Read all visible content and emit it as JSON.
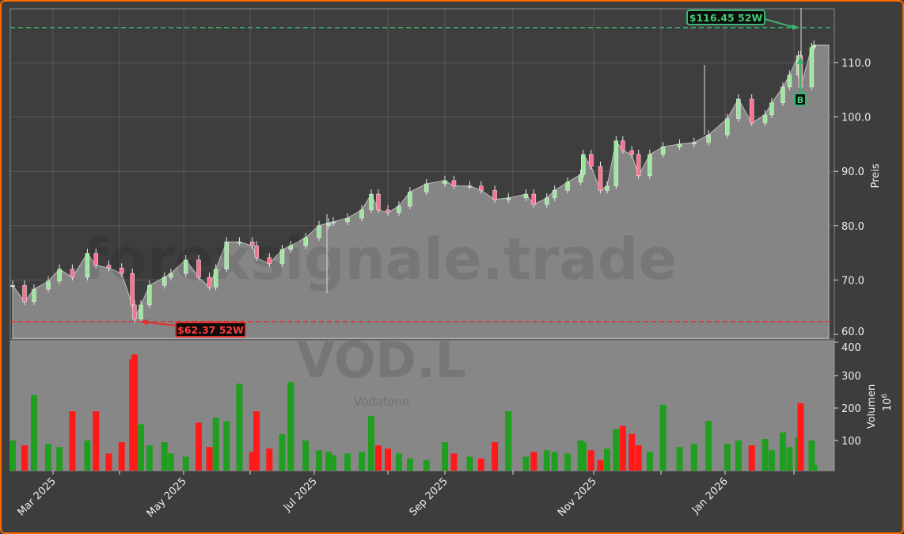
{
  "chart_data": {
    "type": "candlestick+volume",
    "ticker": "VOD.L",
    "company": "Vodafone",
    "watermark": "forexsignale.trade",
    "price_panel": {
      "ylabel": "Preis",
      "ylim": [
        59,
        120
      ],
      "yticks": [
        "60.0",
        "70.0",
        "80.0",
        "90.0",
        "100.0",
        "110.0"
      ]
    },
    "volume_panel": {
      "ylabel": "Volumen",
      "unit": "10^6",
      "ylim": [
        0,
        400
      ],
      "yticks": [
        "100",
        "200",
        "300",
        "400"
      ]
    },
    "xticks": [
      "Mar 2025",
      "May 2025",
      "Jul 2025",
      "Sep 2025",
      "Nov 2025",
      "Jan 2026"
    ],
    "grid": true,
    "colors": {
      "up": "#1f9e1f",
      "down": "#ff1a1a",
      "candle_up": "#9ee89e",
      "candle_down": "#ff6f8f",
      "area": "#858585",
      "high_line": "#3cb371",
      "low_line": "#e03030"
    },
    "annotations": {
      "high_52w": {
        "value": 116.45,
        "label": "$116.45 52W"
      },
      "low_52w": {
        "value": 62.37,
        "label": "$62.37 52W"
      },
      "signal": {
        "label": "B",
        "date": "2026-02-04"
      }
    },
    "series": [
      [
        "2025-02-12",
        69.0,
        100
      ],
      [
        "2025-02-17",
        66.0,
        85
      ],
      [
        "2025-02-21",
        68.3,
        240
      ],
      [
        "2025-02-27",
        69.8,
        90
      ],
      [
        "2025-03-04",
        72.0,
        80
      ],
      [
        "2025-03-10",
        70.5,
        190
      ],
      [
        "2025-03-17",
        74.9,
        100
      ],
      [
        "2025-03-21",
        72.7,
        190
      ],
      [
        "2025-03-27",
        72.2,
        60
      ],
      [
        "2025-04-02",
        71.2,
        95
      ],
      [
        "2025-04-07",
        65.4,
        350
      ],
      [
        "2025-04-08",
        62.8,
        365
      ],
      [
        "2025-04-11",
        65.4,
        150
      ],
      [
        "2025-04-15",
        69.0,
        85
      ],
      [
        "2025-04-22",
        70.5,
        95
      ],
      [
        "2025-04-25",
        71.2,
        60
      ],
      [
        "2025-05-02",
        73.7,
        50
      ],
      [
        "2025-05-08",
        70.5,
        155
      ],
      [
        "2025-05-13",
        68.7,
        80
      ],
      [
        "2025-05-16",
        72.0,
        170
      ],
      [
        "2025-05-21",
        77.0,
        160
      ],
      [
        "2025-05-27",
        77.0,
        275
      ],
      [
        "2025-06-02",
        76.3,
        65
      ],
      [
        "2025-06-04",
        74.1,
        190
      ],
      [
        "2025-06-10",
        73.0,
        75
      ],
      [
        "2025-06-16",
        75.6,
        120
      ],
      [
        "2025-06-20",
        76.3,
        280
      ],
      [
        "2025-06-27",
        77.8,
        100
      ],
      [
        "2025-07-03",
        80.0,
        70
      ],
      [
        "2025-07-07",
        80.5,
        65
      ],
      [
        "2025-07-09",
        80.7,
        55
      ],
      [
        "2025-07-15",
        81.4,
        60
      ],
      [
        "2025-07-21",
        82.9,
        65
      ],
      [
        "2025-07-25",
        85.8,
        175
      ],
      [
        "2025-07-28",
        82.9,
        85
      ],
      [
        "2025-08-01",
        82.4,
        75
      ],
      [
        "2025-08-07",
        83.6,
        60
      ],
      [
        "2025-08-13",
        86.2,
        45
      ],
      [
        "2025-08-22",
        87.7,
        40
      ],
      [
        "2025-09-01",
        88.3,
        95
      ],
      [
        "2025-09-05",
        87.3,
        60
      ],
      [
        "2025-09-12",
        87.3,
        50
      ],
      [
        "2025-09-17",
        86.5,
        45
      ],
      [
        "2025-09-23",
        84.8,
        95
      ],
      [
        "2025-09-29",
        85.1,
        190
      ],
      [
        "2025-10-06",
        85.8,
        50
      ],
      [
        "2025-10-09",
        83.9,
        65
      ],
      [
        "2025-10-14",
        85.1,
        70
      ],
      [
        "2025-10-17",
        86.5,
        65
      ],
      [
        "2025-10-22",
        88.0,
        60
      ],
      [
        "2025-10-27",
        89.4,
        100
      ],
      [
        "2025-10-28",
        93.1,
        95
      ],
      [
        "2025-10-31",
        90.9,
        70
      ],
      [
        "2025-11-04",
        86.5,
        40
      ],
      [
        "2025-11-07",
        87.3,
        75
      ],
      [
        "2025-11-11",
        95.6,
        135
      ],
      [
        "2025-11-14",
        93.8,
        145
      ],
      [
        "2025-11-18",
        93.1,
        120
      ],
      [
        "2025-11-21",
        89.2,
        85
      ],
      [
        "2025-11-26",
        93.1,
        65
      ],
      [
        "2025-12-02",
        94.5,
        210
      ],
      [
        "2025-12-10",
        95.0,
        80
      ],
      [
        "2025-12-17",
        95.3,
        90
      ],
      [
        "2025-12-24",
        96.7,
        160
      ],
      [
        "2026-01-02",
        99.7,
        90
      ],
      [
        "2026-01-07",
        103.3,
        100
      ],
      [
        "2026-01-13",
        98.9,
        85
      ],
      [
        "2026-01-19",
        100.4,
        105
      ],
      [
        "2026-01-22",
        102.6,
        70
      ],
      [
        "2026-01-27",
        105.5,
        125
      ],
      [
        "2026-01-30",
        107.7,
        80
      ],
      [
        "2026-02-03",
        111.3,
        110
      ],
      [
        "2026-02-04",
        105.5,
        215
      ],
      [
        "2026-02-09",
        112.8,
        100
      ],
      [
        "2026-02-10",
        113.2,
        25
      ]
    ]
  }
}
